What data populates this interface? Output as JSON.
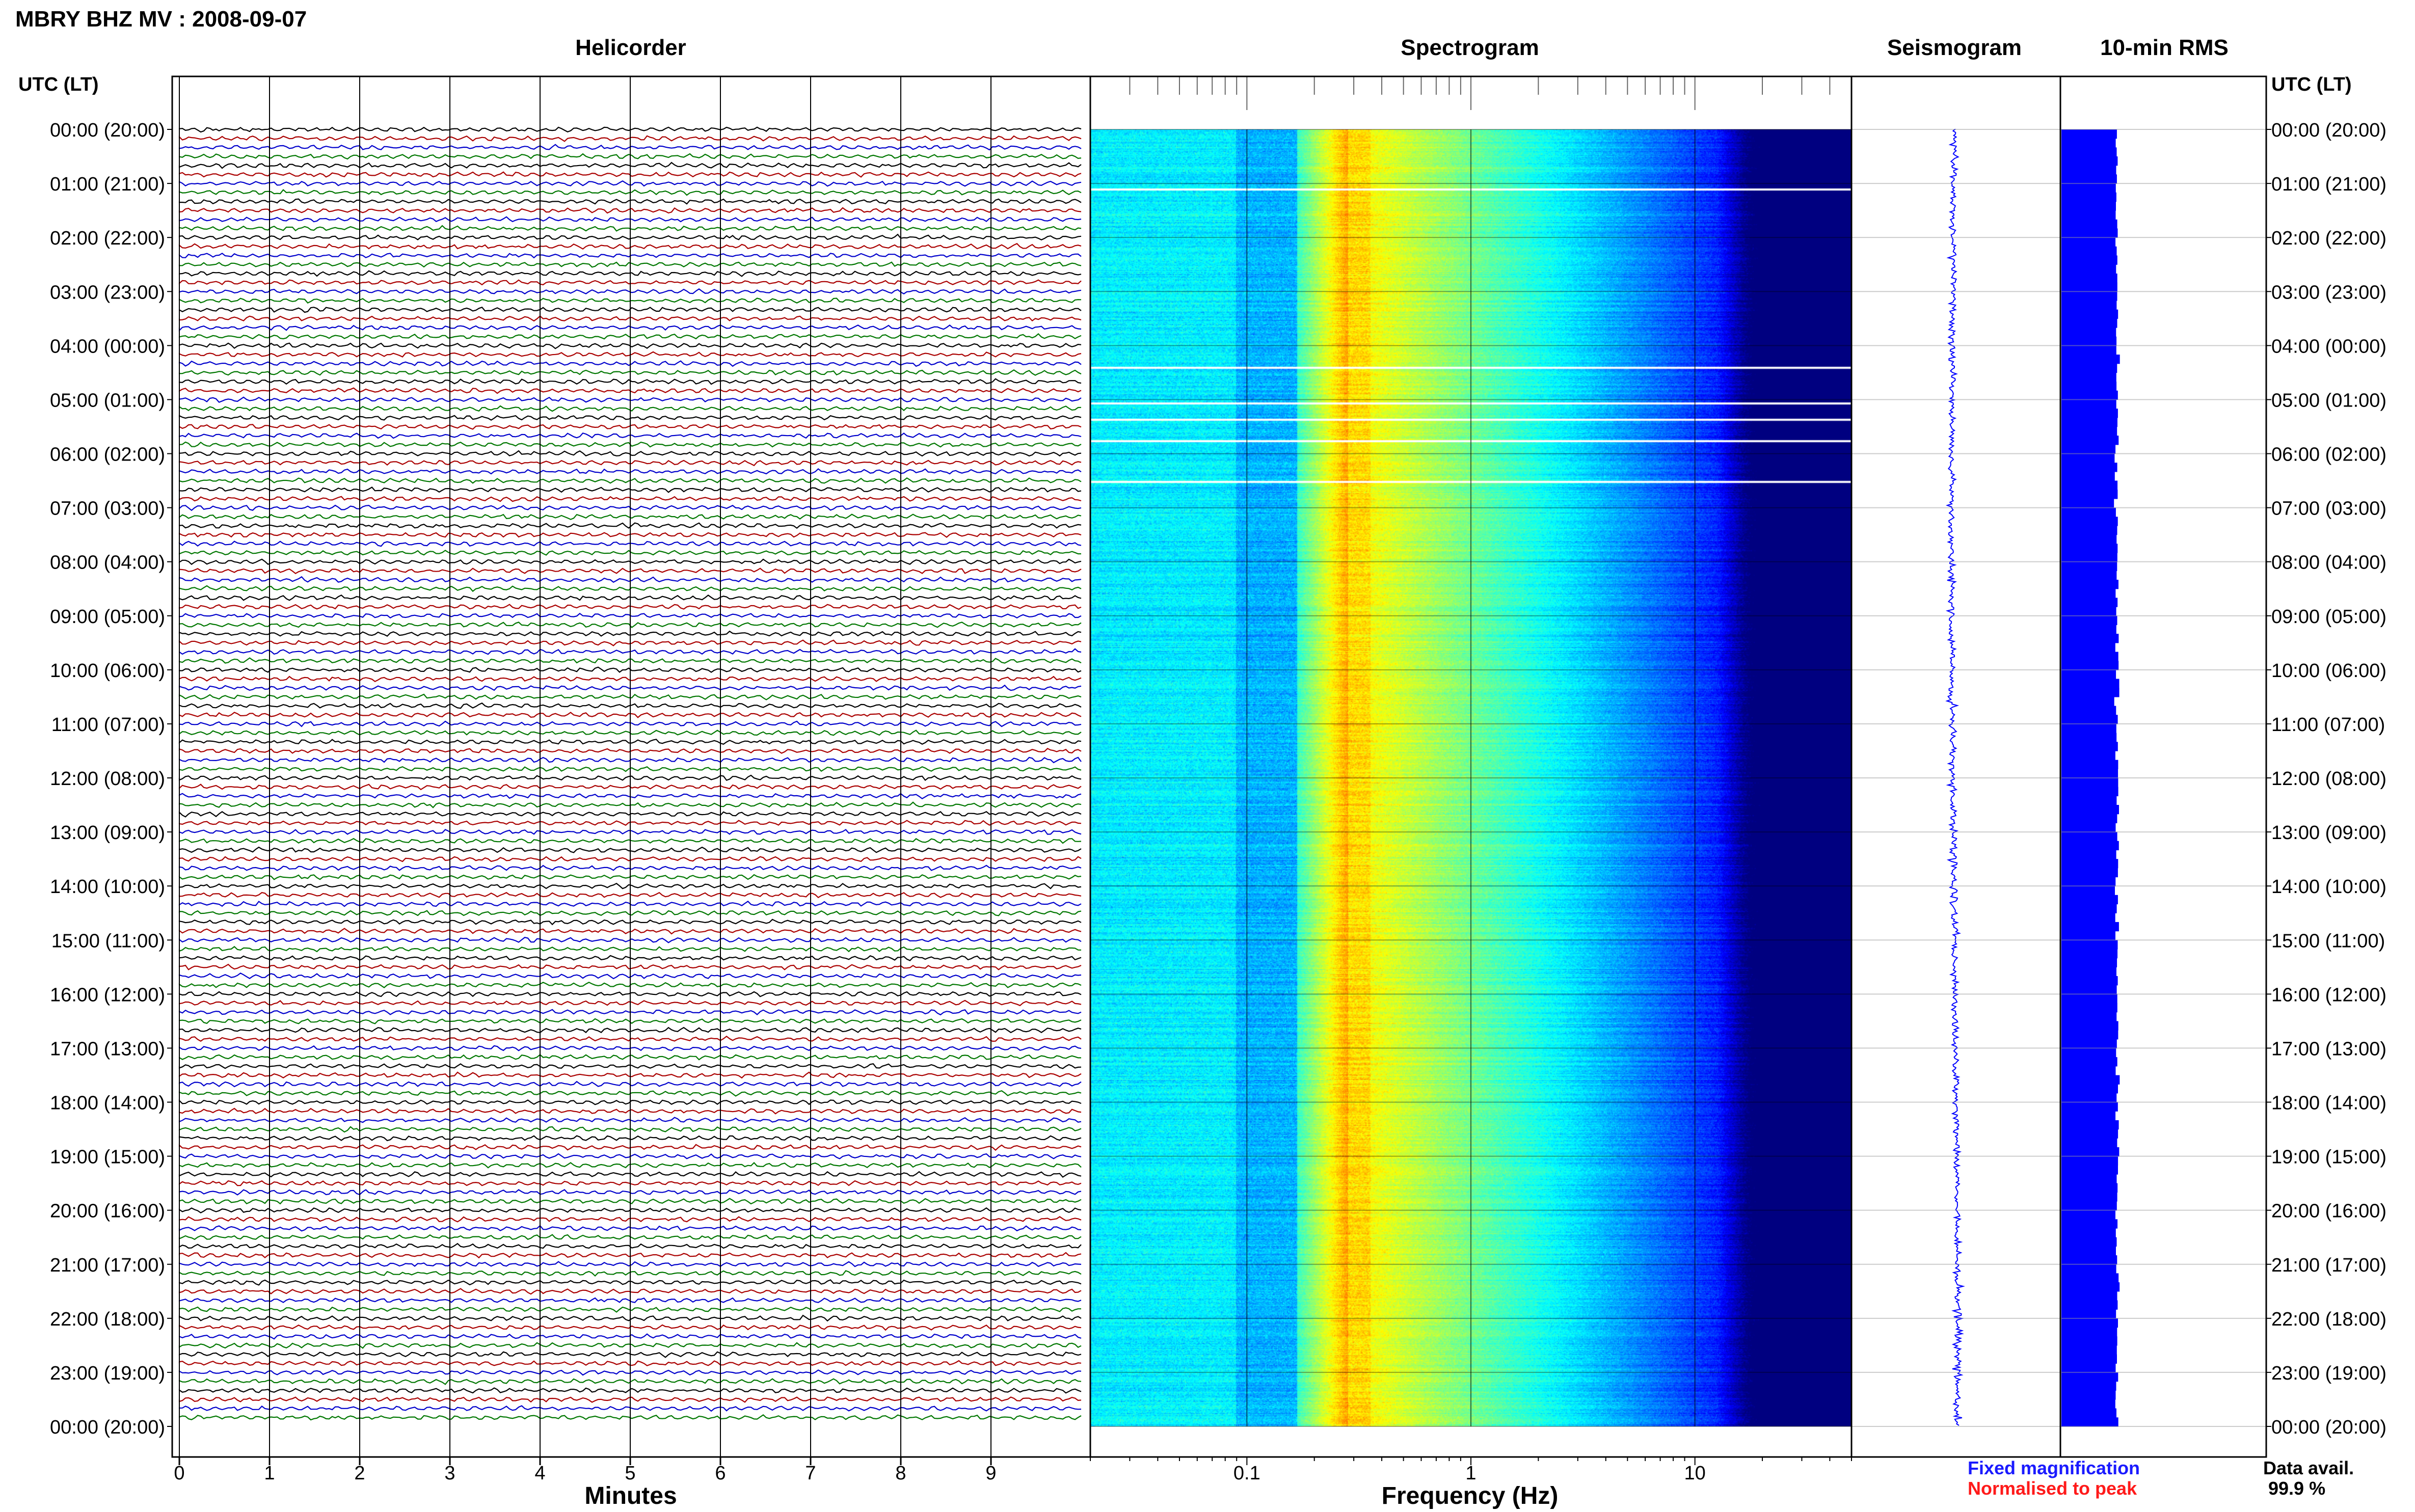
{
  "header": {
    "station_title": "MBRY BHZ MV : 2008-09-07",
    "time_axis_label": "UTC (LT)"
  },
  "panels": {
    "helicorder": "Helicorder",
    "spectrogram": "Spectrogram",
    "seismogram": "Seismogram",
    "rms": "10-min RMS"
  },
  "axes": {
    "minutes_label": "Minutes",
    "minutes_ticks": [
      "0",
      "1",
      "2",
      "3",
      "4",
      "5",
      "6",
      "7",
      "8",
      "9"
    ],
    "frequency_label": "Frequency (Hz)",
    "frequency_ticks": [
      "0.1",
      "1",
      "10"
    ]
  },
  "time_labels": [
    "00:00 (20:00)",
    "01:00 (21:00)",
    "02:00 (22:00)",
    "03:00 (23:00)",
    "04:00 (00:00)",
    "05:00 (01:00)",
    "06:00 (02:00)",
    "07:00 (03:00)",
    "08:00 (04:00)",
    "09:00 (05:00)",
    "10:00 (06:00)",
    "11:00 (07:00)",
    "12:00 (08:00)",
    "13:00 (09:00)",
    "14:00 (10:00)",
    "15:00 (11:00)",
    "16:00 (12:00)",
    "17:00 (13:00)",
    "18:00 (14:00)",
    "19:00 (15:00)",
    "20:00 (16:00)",
    "21:00 (17:00)",
    "22:00 (18:00)",
    "23:00 (19:00)",
    "00:00 (20:00)"
  ],
  "legend": {
    "fixed_magnification": "Fixed magnification",
    "normalised_to_peak": "Normalised to peak",
    "fixed_color": "#1a1aff",
    "normalised_color": "#ff1a1a"
  },
  "data_availability": {
    "label": "Data avail.",
    "value": "99.9 %"
  },
  "chart_data": {
    "type": "heatmap",
    "helicorder_trace_colors": [
      "#000000",
      "#aa0000",
      "#0000cc",
      "#007700"
    ],
    "helicorder_lines_per_hour": 6,
    "helicorder_minutes_range": [
      0,
      10
    ],
    "frequency_range_hz": [
      0.02,
      50
    ],
    "frequency_scale": "log",
    "spectrogram_gaps_hours": [
      1.1,
      4.4,
      5.05,
      5.35,
      5.75,
      6.5
    ],
    "seismogram_color": "#0000ff",
    "rms_color": "#0000ff",
    "rms_relative_level": 0.27
  }
}
